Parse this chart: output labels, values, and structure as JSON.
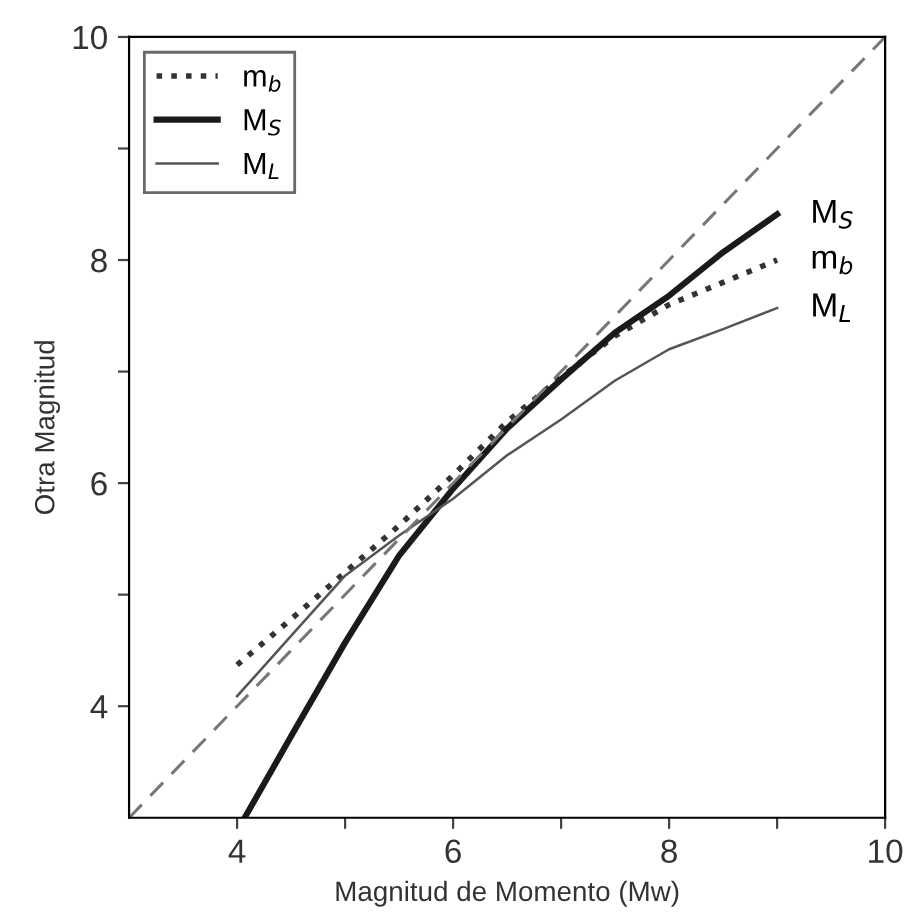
{
  "chart_data": {
    "type": "line",
    "xlabel": "Magnitud de Momento (Mw)",
    "ylabel": "Otra Magnitud",
    "xlim": [
      3,
      10
    ],
    "ylim": [
      3,
      10
    ],
    "xticks": [
      4,
      {
        "value": 5,
        "label": null
      },
      6,
      {
        "value": 7,
        "label": null
      },
      8,
      {
        "value": 9,
        "label": null
      },
      10
    ],
    "yticks": [
      4,
      {
        "value": 5,
        "label": null
      },
      6,
      {
        "value": 7,
        "label": null
      },
      8,
      {
        "value": 9,
        "label": null
      },
      10
    ],
    "grid": false,
    "legend": "top left",
    "marker": "none",
    "series": [
      {
        "name": "m$_{b}$",
        "color": "#333333",
        "line_style": "dotted",
        "x": [
          4,
          4.5,
          5,
          5.5,
          6,
          6.5,
          7,
          7.5,
          8,
          8.5,
          9
        ],
        "values": [
          4.37,
          4.78,
          5.2,
          5.62,
          6.07,
          6.55,
          6.95,
          7.32,
          7.6,
          7.8,
          8.0
        ]
      },
      {
        "name": "M$_{S}$",
        "color": "#1a1a1a",
        "line_style": "solid",
        "x": [
          4.07,
          4.5,
          5,
          5.5,
          6,
          6.5,
          7,
          7.5,
          8,
          8.5,
          9
        ],
        "values": [
          3,
          3.73,
          4.57,
          5.35,
          5.95,
          6.49,
          6.93,
          7.35,
          7.68,
          8.07,
          8.41
        ]
      },
      {
        "name": "M$_{L}$",
        "color": "#555555",
        "line_style": "solid",
        "x": [
          4,
          4.5,
          5,
          5.5,
          6,
          6.5,
          7,
          7.5,
          8,
          8.5,
          9
        ],
        "values": [
          4.09,
          4.63,
          5.17,
          5.53,
          5.86,
          6.25,
          6.57,
          6.92,
          7.2,
          7.38,
          7.57
        ]
      },
      {
        "color": "#777777",
        "line_style": "dashed",
        "x": [
          3,
          10
        ],
        "values": [
          3,
          10
        ]
      }
    ]
  }
}
